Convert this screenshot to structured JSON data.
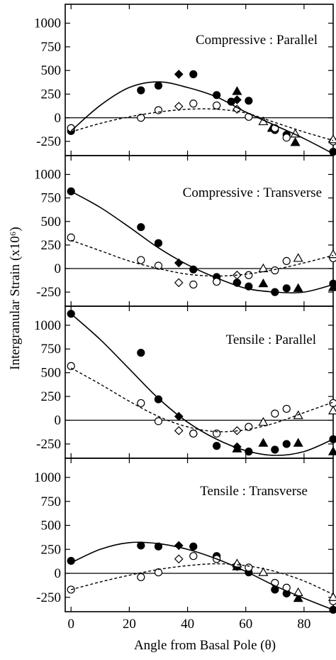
{
  "figure": {
    "ylabel": "Intergranular Strain (x10⁶)",
    "xlabel": "Angle from Basal Pole (θ)"
  },
  "chart_data": {
    "type": "scatter",
    "xlabel": "Angle from Basal Pole (θ)",
    "ylabel": "Intergranular Strain (x10⁶)",
    "xlim": [
      -2,
      90
    ],
    "ylim": [
      -400,
      1200
    ],
    "x_ticks": [
      0,
      20,
      40,
      60,
      80
    ],
    "y_ticks": [
      -250,
      0,
      250,
      500,
      750,
      1000
    ],
    "panels": [
      {
        "title": "Compressive : Parallel",
        "series": [
          {
            "marker": "filled-circle",
            "x": [
              0,
              24,
              30,
              42,
              50,
              55,
              61,
              70,
              74,
              90
            ],
            "y": [
              -140,
              290,
              340,
              460,
              240,
              170,
              180,
              -130,
              -180,
              -360
            ]
          },
          {
            "marker": "filled-diamond",
            "x": [
              37,
              57
            ],
            "y": [
              460,
              190
            ]
          },
          {
            "marker": "filled-triangle",
            "x": [
              57,
              69,
              77
            ],
            "y": [
              280,
              -110,
              -260
            ]
          },
          {
            "marker": "open-circle",
            "x": [
              0,
              24,
              30,
              42,
              50,
              61,
              70,
              74,
              90
            ],
            "y": [
              -110,
              0,
              80,
              150,
              130,
              10,
              -110,
              -210,
              -250
            ]
          },
          {
            "marker": "open-diamond",
            "x": [
              37,
              57
            ],
            "y": [
              120,
              90
            ]
          },
          {
            "marker": "open-triangle",
            "x": [
              66,
              77,
              90
            ],
            "y": [
              -40,
              -170,
              -230
            ]
          },
          {
            "type": "line",
            "style": "solid",
            "x": [
              0,
              10,
              20,
              30,
              40,
              50,
              60,
              70,
              80,
              90
            ],
            "y": [
              -140,
              130,
              320,
              380,
              320,
              220,
              60,
              -80,
              -220,
              -380
            ]
          },
          {
            "type": "line",
            "style": "dashed",
            "x": [
              0,
              10,
              20,
              30,
              40,
              50,
              60,
              70,
              80,
              90
            ],
            "y": [
              -150,
              -60,
              10,
              60,
              90,
              90,
              50,
              -50,
              -150,
              -240
            ]
          }
        ]
      },
      {
        "title": "Compressive : Transverse",
        "series": [
          {
            "marker": "filled-circle",
            "x": [
              0,
              24,
              30,
              42,
              50,
              57,
              61,
              70,
              74,
              90
            ],
            "y": [
              820,
              440,
              270,
              -10,
              -90,
              -150,
              -190,
              -250,
              -210,
              -160
            ]
          },
          {
            "marker": "filled-diamond",
            "x": [
              37,
              57
            ],
            "y": [
              60,
              -150
            ]
          },
          {
            "marker": "filled-triangle",
            "x": [
              66,
              78,
              90
            ],
            "y": [
              -160,
              -210,
              -200
            ]
          },
          {
            "marker": "open-circle",
            "x": [
              0,
              24,
              30,
              42,
              50,
              61,
              70,
              74,
              90
            ],
            "y": [
              330,
              90,
              30,
              -170,
              -140,
              -70,
              -20,
              80,
              110
            ]
          },
          {
            "marker": "open-diamond",
            "x": [
              37,
              57
            ],
            "y": [
              -150,
              -70
            ]
          },
          {
            "marker": "open-triangle",
            "x": [
              66,
              78,
              90
            ],
            "y": [
              0,
              110,
              150
            ]
          },
          {
            "type": "line",
            "style": "solid",
            "x": [
              0,
              10,
              20,
              30,
              40,
              50,
              60,
              70,
              80,
              90
            ],
            "y": [
              820,
              650,
              440,
              220,
              40,
              -100,
              -210,
              -250,
              -250,
              -170
            ]
          },
          {
            "type": "line",
            "style": "dashed",
            "x": [
              0,
              10,
              20,
              30,
              40,
              50,
              60,
              70,
              80,
              90
            ],
            "y": [
              300,
              190,
              80,
              0,
              -60,
              -80,
              -60,
              -10,
              60,
              140
            ]
          }
        ]
      },
      {
        "title": "Tensile : Parallel",
        "series": [
          {
            "marker": "filled-circle",
            "x": [
              0,
              24,
              30,
              42,
              50,
              61,
              70,
              74,
              90
            ],
            "y": [
              1120,
              710,
              220,
              -140,
              -270,
              -330,
              -310,
              -250,
              -200
            ]
          },
          {
            "marker": "filled-diamond",
            "x": [
              37,
              57
            ],
            "y": [
              40,
              -280
            ]
          },
          {
            "marker": "filled-triangle",
            "x": [
              57,
              66,
              78,
              90
            ],
            "y": [
              -300,
              -240,
              -240,
              -330
            ]
          },
          {
            "marker": "open-circle",
            "x": [
              0,
              24,
              30,
              42,
              50,
              61,
              70,
              74,
              90
            ],
            "y": [
              570,
              180,
              -10,
              -140,
              -140,
              -70,
              70,
              120,
              180
            ]
          },
          {
            "marker": "open-diamond",
            "x": [
              37,
              57
            ],
            "y": [
              -110,
              -110
            ]
          },
          {
            "marker": "open-triangle",
            "x": [
              66,
              78,
              90
            ],
            "y": [
              -20,
              50,
              100
            ]
          },
          {
            "type": "line",
            "style": "solid",
            "x": [
              0,
              10,
              20,
              30,
              40,
              50,
              60,
              70,
              80,
              90
            ],
            "y": [
              1120,
              850,
              540,
              230,
              -20,
              -200,
              -320,
              -370,
              -330,
              -200
            ]
          },
          {
            "type": "line",
            "style": "dashed",
            "x": [
              0,
              10,
              20,
              30,
              40,
              50,
              60,
              70,
              80,
              90
            ],
            "y": [
              550,
              380,
              200,
              40,
              -70,
              -120,
              -100,
              -30,
              80,
              190
            ]
          }
        ]
      },
      {
        "title": "Tensile : Transverse",
        "series": [
          {
            "marker": "filled-circle",
            "x": [
              0,
              24,
              30,
              42,
              50,
              61,
              70,
              74,
              90
            ],
            "y": [
              130,
              290,
              280,
              280,
              180,
              10,
              -170,
              -210,
              -380
            ]
          },
          {
            "marker": "filled-diamond",
            "x": [
              37,
              57
            ],
            "y": [
              290,
              70
            ]
          },
          {
            "marker": "filled-triangle",
            "x": [
              57,
              78
            ],
            "y": [
              70,
              -260
            ]
          },
          {
            "marker": "open-circle",
            "x": [
              0,
              24,
              30,
              42,
              50,
              61,
              70,
              74,
              90
            ],
            "y": [
              -170,
              -40,
              10,
              180,
              150,
              60,
              -100,
              -150,
              -290
            ]
          },
          {
            "marker": "open-diamond",
            "x": [
              37,
              57
            ],
            "y": [
              150,
              90
            ]
          },
          {
            "marker": "open-triangle",
            "x": [
              57,
              66,
              78,
              90
            ],
            "y": [
              100,
              10,
              -200,
              -250
            ]
          },
          {
            "type": "line",
            "style": "solid",
            "x": [
              0,
              10,
              20,
              30,
              40,
              50,
              60,
              70,
              80,
              90
            ],
            "y": [
              110,
              250,
              320,
              310,
              250,
              150,
              20,
              -130,
              -260,
              -380
            ]
          },
          {
            "type": "line",
            "style": "dashed",
            "x": [
              0,
              10,
              20,
              30,
              40,
              50,
              60,
              70,
              80,
              90
            ],
            "y": [
              -170,
              -90,
              -20,
              40,
              80,
              100,
              80,
              20,
              -80,
              -220
            ]
          }
        ]
      }
    ]
  }
}
